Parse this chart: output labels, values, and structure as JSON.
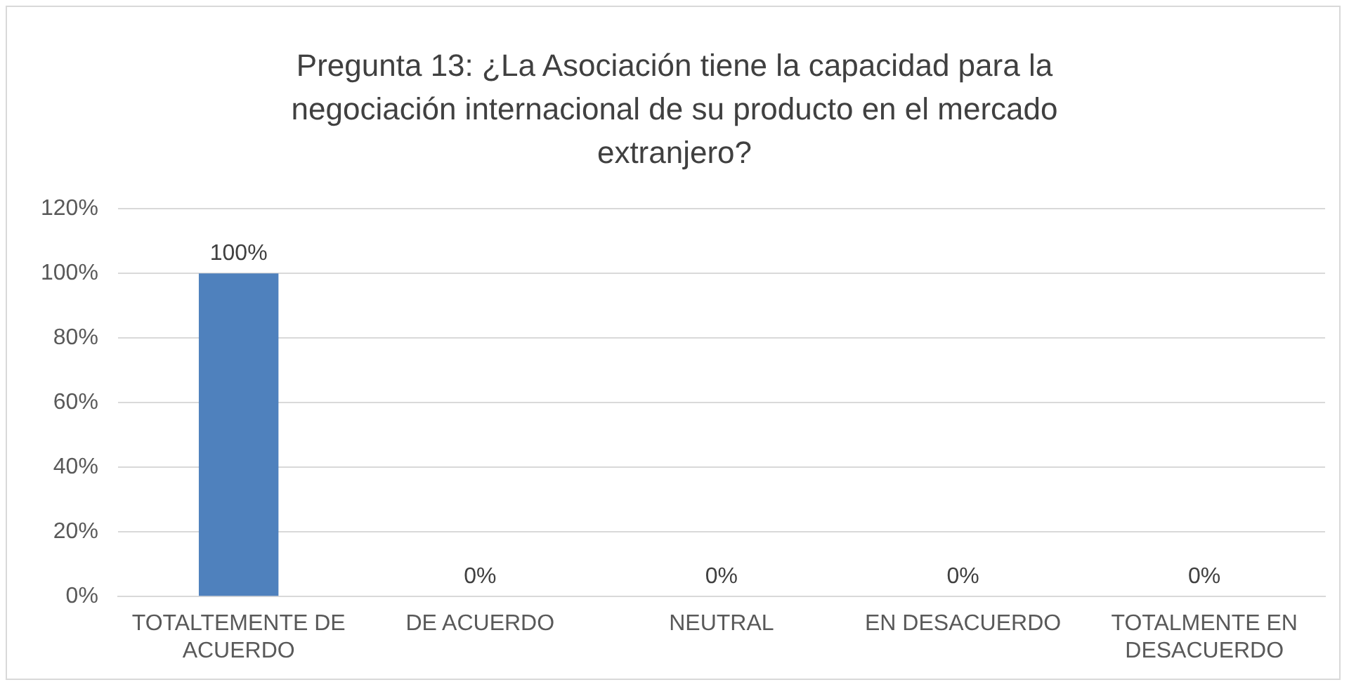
{
  "chart_data": {
    "type": "bar",
    "title": "Pregunta 13: ¿La Asociación tiene la capacidad para la negociación internacional de su producto en el mercado extranjero?",
    "categories": [
      "TOTALTEMENTE DE ACUERDO",
      "DE ACUERDO",
      "NEUTRAL",
      "EN DESACUERDO",
      "TOTALMENTE EN DESACUERDO"
    ],
    "values": [
      100,
      0,
      0,
      0,
      0
    ],
    "value_labels": [
      "100%",
      "0%",
      "0%",
      "0%",
      "0%"
    ],
    "color": "#4f81bd",
    "ylim": [
      0,
      120
    ],
    "yticks": [
      {
        "value": 0,
        "label": "0%"
      },
      {
        "value": 20,
        "label": "20%"
      },
      {
        "value": 40,
        "label": "40%"
      },
      {
        "value": 60,
        "label": "60%"
      },
      {
        "value": 80,
        "label": "80%"
      },
      {
        "value": 100,
        "label": "100%"
      },
      {
        "value": 120,
        "label": "120%"
      }
    ],
    "grid": "y",
    "legend": false
  }
}
